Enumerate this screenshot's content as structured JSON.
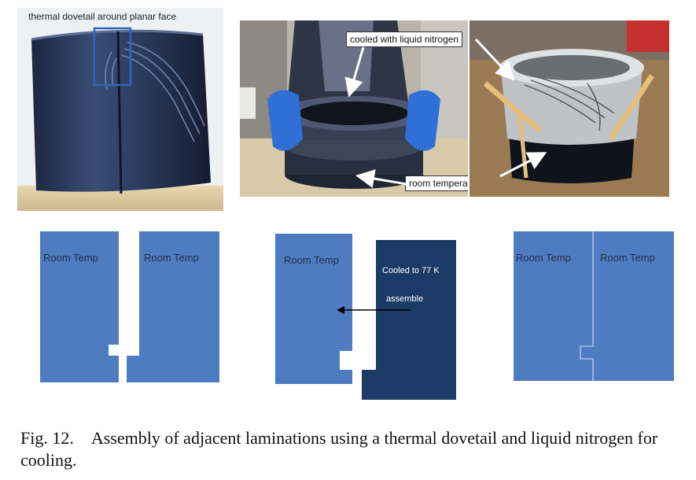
{
  "photos": {
    "left": {
      "label": "thermal dovetail around planar face"
    },
    "middle": {
      "callout_cooled": "cooled with liquid nitrogen",
      "callout_room": "room temperature"
    }
  },
  "diagram": {
    "colors": {
      "room": "#4f7cc0",
      "cooled": "#1b3a66"
    },
    "stage1": {
      "left_label": "Room Temp",
      "right_label": "Room Temp"
    },
    "stage2": {
      "left_label": "Room Temp",
      "cooled_label": "Cooled to 77 K",
      "action_label": "assemble"
    },
    "stage3": {
      "left_label": "Room Temp",
      "right_label": "Room Temp"
    }
  },
  "caption": {
    "number": "Fig. 12.",
    "text": "Assembly of adjacent laminations using a thermal dovetail and liquid nitrogen for cooling."
  }
}
